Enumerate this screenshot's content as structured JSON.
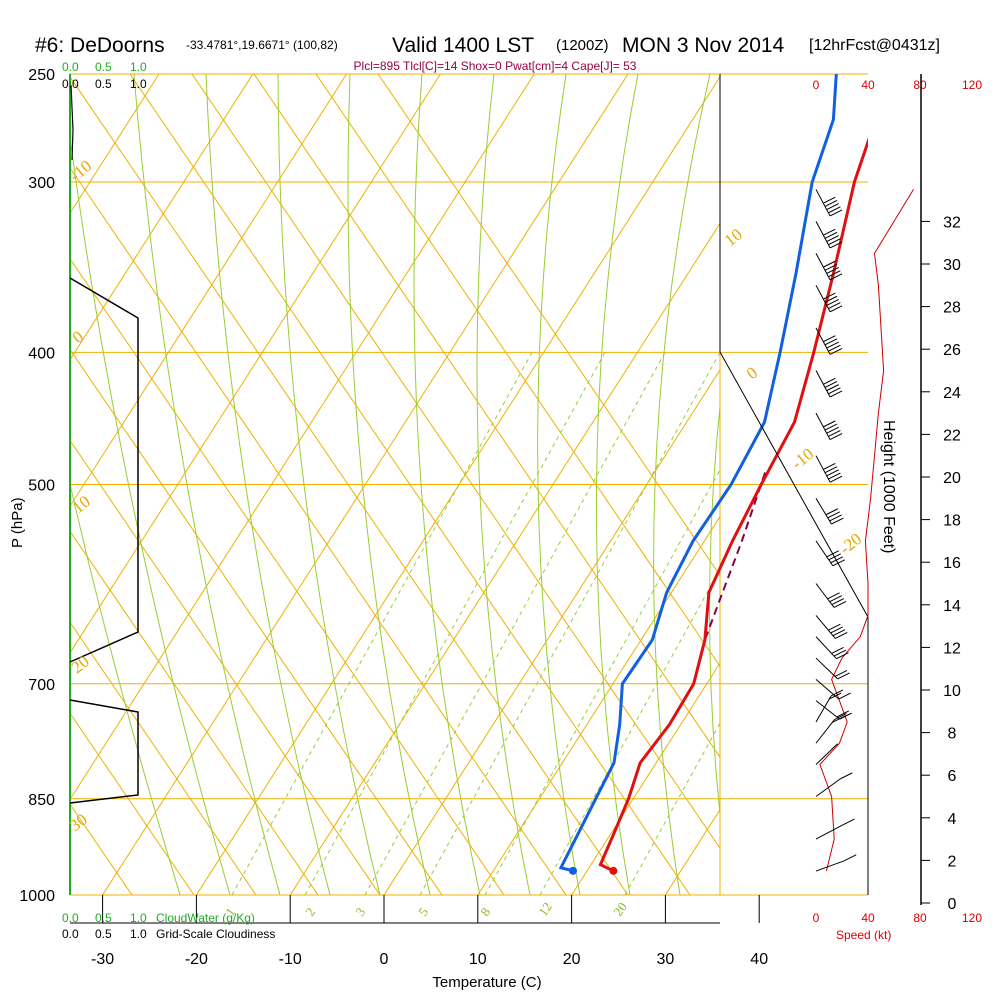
{
  "header": {
    "station": "#6: DeDoorns",
    "location": "-33.4781°,19.6671° (100,82)",
    "valid": "Valid 1400 LST",
    "utc": "(1200Z)",
    "date": "MON 3 Nov 2014",
    "forecast": "[12hrFcst@0431z]",
    "params": "Plcl=895 Tlcl[C]=14 Shox=0 Pwat[cm]=4 Cape[J]= 53"
  },
  "colors": {
    "temperature": "#e01010",
    "dewpoint": "#1060e0",
    "isobar": "#f0b000",
    "dry_adiabat": "#f0b000",
    "moist_adiabat": "#99cc33",
    "mixing_ratio": "#99cc33",
    "parcel": "#880044",
    "wind_speed": "#cc0000"
  },
  "chart_data": {
    "type": "skew-t",
    "xlabel": "Temperature (C)",
    "ylabel": "P (hPa)",
    "y2label": "Height (1000 Feet)",
    "x_ticks": [
      -30,
      -20,
      -10,
      0,
      10,
      20,
      30,
      40
    ],
    "pressure_levels": [
      250,
      300,
      400,
      500,
      700,
      850,
      1000
    ],
    "height_ticks": [
      0,
      2,
      4,
      6,
      8,
      10,
      12,
      14,
      16,
      18,
      20,
      22,
      24,
      26,
      28,
      30,
      32
    ],
    "dry_adiabat_labels": [
      "-10",
      "0",
      "10",
      "20",
      "30",
      "10",
      "0",
      "-10",
      "-20",
      "-30"
    ],
    "mixing_ratio_labels": [
      "1",
      "2",
      "3",
      "5",
      "8",
      "12",
      "20"
    ],
    "temperature_profile": [
      {
        "p": 250,
        "t": -0.5
      },
      {
        "p": 270,
        "t": -0.5
      },
      {
        "p": 300,
        "t": 1.5
      },
      {
        "p": 350,
        "t": 5.5
      },
      {
        "p": 400,
        "t": 8.8
      },
      {
        "p": 450,
        "t": 11.5
      },
      {
        "p": 500,
        "t": 12.2
      },
      {
        "p": 550,
        "t": 13.0
      },
      {
        "p": 600,
        "t": 14.0
      },
      {
        "p": 650,
        "t": 16.8
      },
      {
        "p": 700,
        "t": 18.6
      },
      {
        "p": 750,
        "t": 18.8
      },
      {
        "p": 800,
        "t": 18.3
      },
      {
        "p": 850,
        "t": 19.5
      },
      {
        "p": 900,
        "t": 20.3
      },
      {
        "p": 950,
        "t": 21.0
      },
      {
        "p": 960,
        "t": 22.8
      }
    ],
    "dewpoint_profile": [
      {
        "p": 250,
        "t": -7.8
      },
      {
        "p": 270,
        "t": -5.0
      },
      {
        "p": 300,
        "t": -3.0
      },
      {
        "p": 350,
        "t": 1.5
      },
      {
        "p": 400,
        "t": 5.2
      },
      {
        "p": 450,
        "t": 8.3
      },
      {
        "p": 500,
        "t": 9.0
      },
      {
        "p": 550,
        "t": 8.8
      },
      {
        "p": 600,
        "t": 9.5
      },
      {
        "p": 650,
        "t": 11.2
      },
      {
        "p": 700,
        "t": 11.0
      },
      {
        "p": 750,
        "t": 13.5
      },
      {
        "p": 800,
        "t": 15.5
      },
      {
        "p": 850,
        "t": 16.0
      },
      {
        "p": 900,
        "t": 16.5
      },
      {
        "p": 955,
        "t": 17.0
      },
      {
        "p": 960,
        "t": 18.5
      }
    ],
    "parcel_profile": [
      {
        "p": 490,
        "t": 11.8
      },
      {
        "p": 550,
        "t": 14.0
      },
      {
        "p": 620,
        "t": 16.0
      },
      {
        "p": 650,
        "t": 16.8
      }
    ],
    "wind_speed_axis": {
      "ticks": [
        0,
        40,
        80,
        120
      ],
      "label": "Speed (kt)"
    },
    "wind_speed_profile": [
      {
        "h": 1.5,
        "s": 8
      },
      {
        "h": 3,
        "s": 14
      },
      {
        "h": 5,
        "s": 12
      },
      {
        "h": 6.5,
        "s": 3
      },
      {
        "h": 7.5,
        "s": 18
      },
      {
        "h": 8.5,
        "s": 24
      },
      {
        "h": 9.5,
        "s": 18
      },
      {
        "h": 10.5,
        "s": 12
      },
      {
        "h": 11.5,
        "s": 20
      },
      {
        "h": 12.5,
        "s": 34
      },
      {
        "h": 13.5,
        "s": 40
      },
      {
        "h": 15,
        "s": 40
      },
      {
        "h": 17,
        "s": 38
      },
      {
        "h": 19,
        "s": 42
      },
      {
        "h": 21,
        "s": 45
      },
      {
        "h": 23,
        "s": 48
      },
      {
        "h": 25,
        "s": 52
      },
      {
        "h": 27,
        "s": 50
      },
      {
        "h": 29,
        "s": 48
      },
      {
        "h": 30.5,
        "s": 45
      },
      {
        "h": 32,
        "s": 60
      },
      {
        "h": 33.5,
        "s": 75
      }
    ],
    "cloud_axes": {
      "cloud_water_ticks": [
        "0.0",
        "0.5",
        "1.0"
      ],
      "cloud_water_label": "CloudWater (g/Kg)",
      "cloudiness_ticks": [
        "0.0",
        "0.5",
        "1.0"
      ],
      "cloudiness_label": "Grid-Scale Cloudiness"
    }
  }
}
